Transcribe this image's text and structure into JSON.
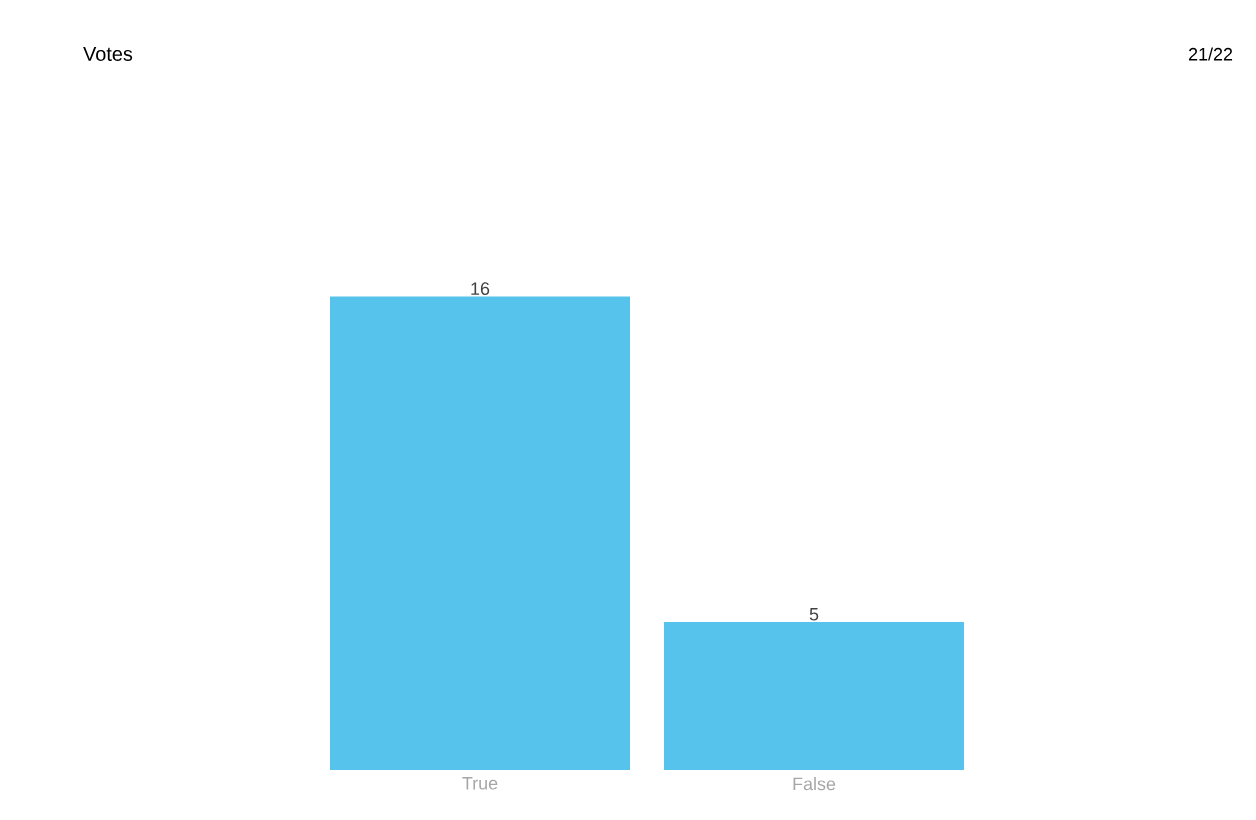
{
  "chart_data": {
    "type": "bar",
    "title": "Votes",
    "annotations": [
      "21/22"
    ],
    "categories": [
      "True",
      "False"
    ],
    "values": [
      16,
      5
    ],
    "color": "#56c3ec",
    "data_labels": true
  }
}
